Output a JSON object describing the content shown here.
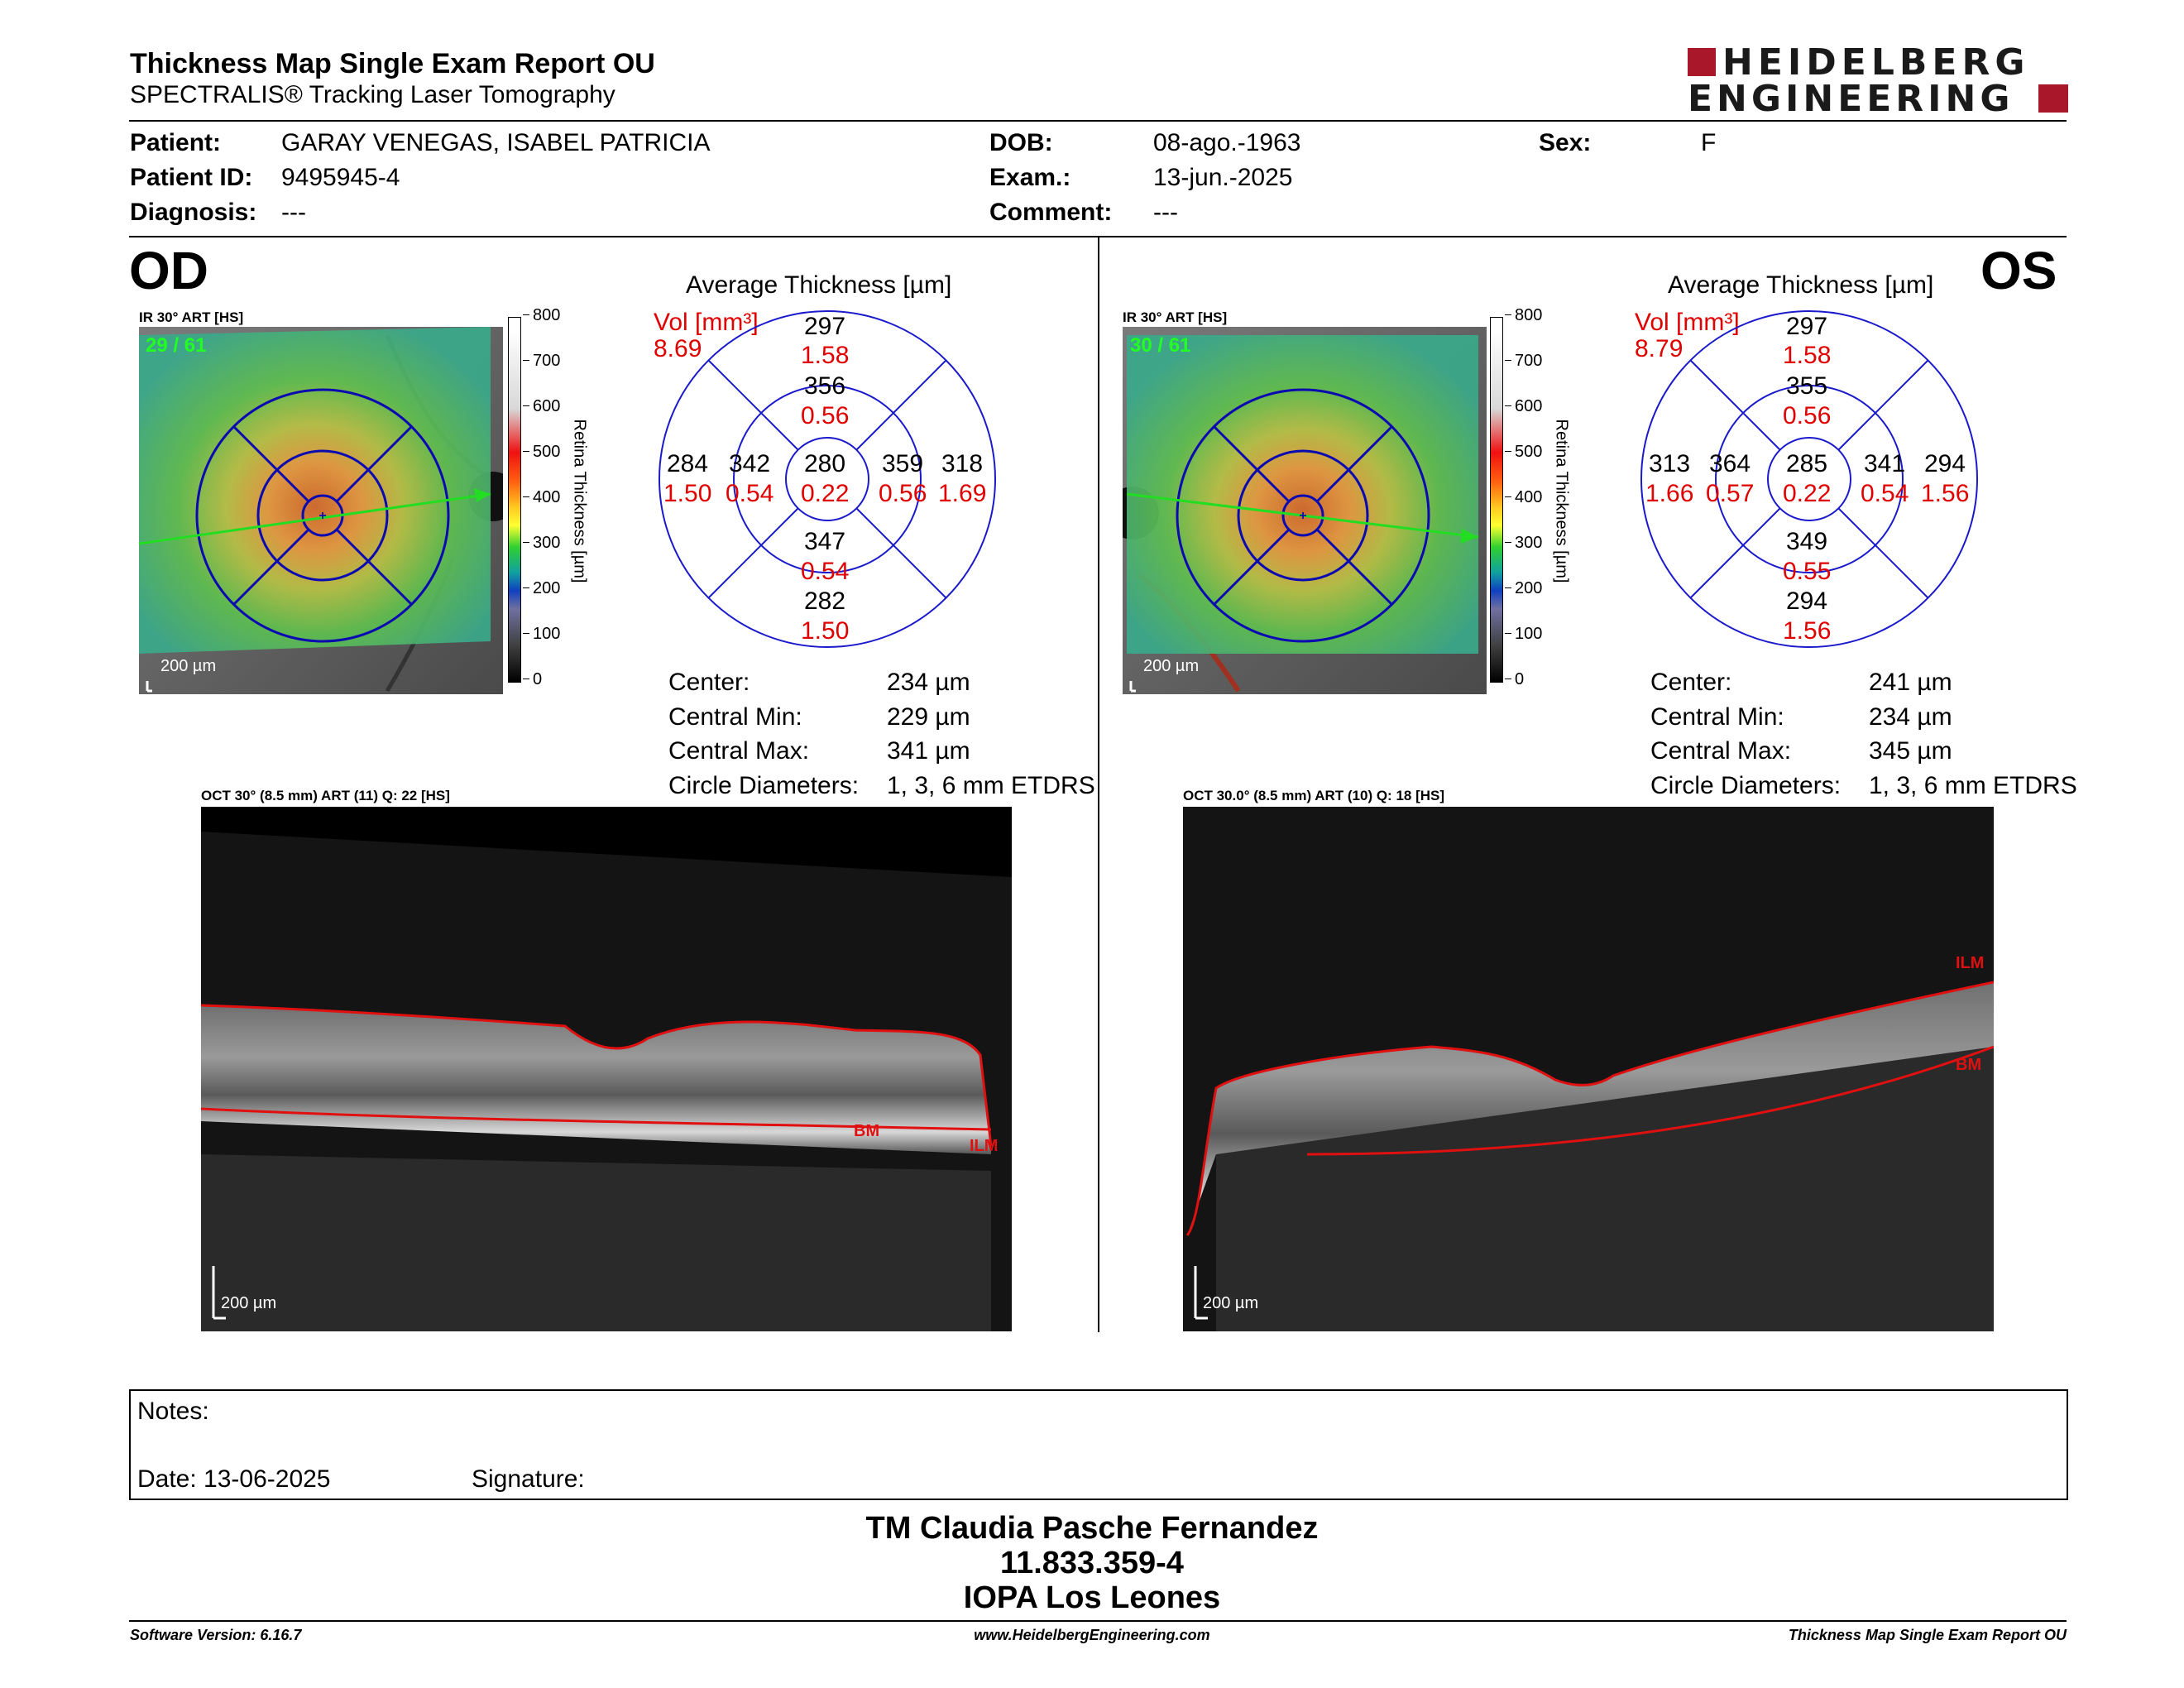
{
  "header": {
    "title": "Thickness Map Single Exam Report OU",
    "subtitle": "SPECTRALIS® Tracking Laser Tomography",
    "logo_line1": "HEIDELBERG",
    "logo_line2": "ENGINEERING"
  },
  "patient": {
    "patient_label": "Patient:",
    "patient_value": "GARAY VENEGAS, ISABEL PATRICIA",
    "id_label": "Patient ID:",
    "id_value": "9495945-4",
    "diagnosis_label": "Diagnosis:",
    "diagnosis_value": "---",
    "dob_label": "DOB:",
    "dob_value": "08-ago.-1963",
    "exam_label": "Exam.:",
    "exam_value": "13-jun.-2025",
    "comment_label": "Comment:",
    "comment_value": "---",
    "sex_label": "Sex:",
    "sex_value": "F"
  },
  "od": {
    "eye": "OD",
    "ir_label": "IR 30° ART [HS]",
    "frame": "29 / 61",
    "scale": "200 µm",
    "colorbar_ticks": [
      "800",
      "700",
      "600",
      "500",
      "400",
      "300",
      "200",
      "100",
      "0"
    ],
    "colorbar_label": "Retina  Thickness [µm]",
    "avg_title": "Average Thickness [µm]",
    "vol_label": "Vol [mm³]",
    "vol_value": "8.69",
    "sectors": {
      "outer_sup": [
        "297",
        "1.58"
      ],
      "inner_sup": [
        "356",
        "0.56"
      ],
      "outer_left": [
        "284",
        "1.50"
      ],
      "inner_left": [
        "342",
        "0.54"
      ],
      "center": [
        "280",
        "0.22"
      ],
      "inner_right": [
        "359",
        "0.56"
      ],
      "outer_right": [
        "318",
        "1.69"
      ],
      "inner_inf": [
        "347",
        "0.54"
      ],
      "outer_inf": [
        "282",
        "1.50"
      ]
    },
    "stats": [
      {
        "label": "Center:",
        "value": "234 µm"
      },
      {
        "label": "Central Min:",
        "value": "229 µm"
      },
      {
        "label": "Central Max:",
        "value": "341 µm"
      },
      {
        "label": "Circle Diameters:",
        "value": "1, 3, 6 mm ETDRS"
      }
    ],
    "oct_label": "OCT 30° (8.5 mm) ART (11) Q: 22 [HS]",
    "oct_scale": "200 µm",
    "bm_tag": "BM",
    "ilm_tag": "ILM"
  },
  "os": {
    "eye": "OS",
    "ir_label": "IR 30° ART [HS]",
    "frame": "30 / 61",
    "scale": "200 µm",
    "colorbar_ticks": [
      "800",
      "700",
      "600",
      "500",
      "400",
      "300",
      "200",
      "100",
      "0"
    ],
    "colorbar_label": "Retina  Thickness [µm]",
    "avg_title": "Average Thickness [µm]",
    "vol_label": "Vol [mm³]",
    "vol_value": "8.79",
    "sectors": {
      "outer_sup": [
        "297",
        "1.58"
      ],
      "inner_sup": [
        "355",
        "0.56"
      ],
      "outer_left": [
        "313",
        "1.66"
      ],
      "inner_left": [
        "364",
        "0.57"
      ],
      "center": [
        "285",
        "0.22"
      ],
      "inner_right": [
        "341",
        "0.54"
      ],
      "outer_right": [
        "294",
        "1.56"
      ],
      "inner_inf": [
        "349",
        "0.55"
      ],
      "outer_inf": [
        "294",
        "1.56"
      ]
    },
    "stats": [
      {
        "label": "Center:",
        "value": "241 µm"
      },
      {
        "label": "Central Min:",
        "value": "234 µm"
      },
      {
        "label": "Central Max:",
        "value": "345 µm"
      },
      {
        "label": "Circle Diameters:",
        "value": "1, 3, 6 mm ETDRS"
      }
    ],
    "oct_label": "OCT 30.0° (8.5 mm) ART (10) Q: 18 [HS]",
    "oct_scale": "200 µm",
    "bm_tag": "BM",
    "ilm_tag": "ILM"
  },
  "notes": {
    "notes_label": "Notes:",
    "date_label": "Date: 13-06-2025",
    "signature_label": "Signature:"
  },
  "signatory": {
    "name": "TM Claudia Pasche Fernandez",
    "rut": "11.833.359-4",
    "org": "IOPA Los Leones"
  },
  "footer": {
    "software": "Software Version: 6.16.7",
    "website": "www.HeidelbergEngineering.com",
    "report": "Thickness Map Single Exam Report OU"
  },
  "colors": {
    "accent_red": "#b0182c",
    "volume_red": "#e00000",
    "grid_blue": "#1a1acc",
    "scan_line_green": "#22dd22"
  }
}
